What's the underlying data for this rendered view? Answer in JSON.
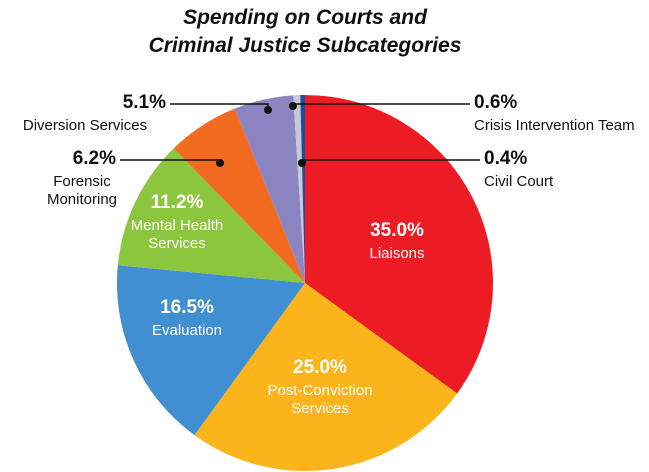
{
  "chart_data": {
    "type": "pie",
    "title": [
      "Spending on Courts and",
      "Criminal Justice Subcategories"
    ],
    "categories": [
      "Liaisons",
      "Post-Conviction Services",
      "Evaluation",
      "Mental Health Services",
      "Forensic Monitoring",
      "Diversion Services",
      "Crisis Intervention Team",
      "Civil Court"
    ],
    "values": [
      35.0,
      25.0,
      16.5,
      11.2,
      6.2,
      5.1,
      0.6,
      0.4
    ],
    "value_labels": [
      "35.0%",
      "25.0%",
      "16.5%",
      "11.2%",
      "6.2%",
      "5.1%",
      "0.6%",
      "0.4%"
    ],
    "colors": [
      "#ed1c24",
      "#fbb41a",
      "#3f8fd2",
      "#8cc63f",
      "#f26b21",
      "#8b85c1",
      "#c9c9d6",
      "#1b4f9c"
    ]
  }
}
